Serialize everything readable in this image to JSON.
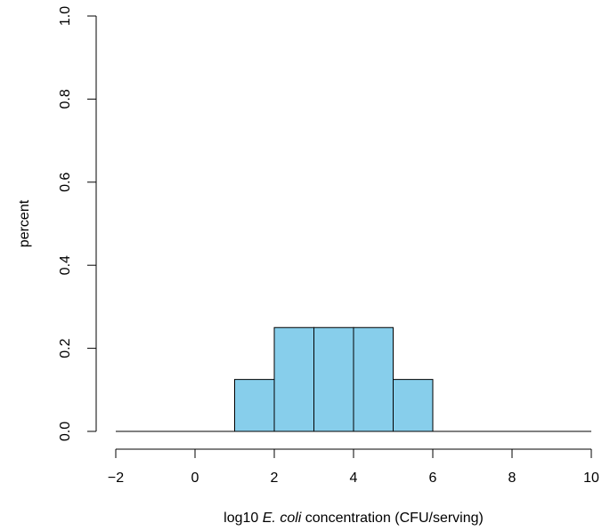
{
  "chart_data": {
    "type": "bar",
    "title": "",
    "xlabel_parts": [
      "log10 ",
      "E. coli",
      " concentration (CFU/serving)"
    ],
    "ylabel": "percent",
    "xlim": [
      -2,
      10
    ],
    "ylim": [
      0,
      1
    ],
    "x_ticks": [
      -2,
      0,
      2,
      4,
      6,
      8,
      10
    ],
    "x_tick_labels": [
      "−2",
      "0",
      "2",
      "4",
      "6",
      "8",
      "10"
    ],
    "y_ticks": [
      0,
      0.2,
      0.4,
      0.6,
      0.8,
      1.0
    ],
    "y_tick_labels": [
      "0.0",
      "0.2",
      "0.4",
      "0.6",
      "0.8",
      "1.0"
    ],
    "bin_edges": [
      -2,
      -1,
      0,
      1,
      2,
      3,
      4,
      5,
      6,
      7,
      8,
      9,
      10
    ],
    "values": [
      0,
      0,
      0,
      0.125,
      0.25,
      0.25,
      0.25,
      0.125,
      0,
      0,
      0,
      0
    ],
    "bar_color": "#87CEEB",
    "edge_color": "#000000",
    "grid": false
  }
}
